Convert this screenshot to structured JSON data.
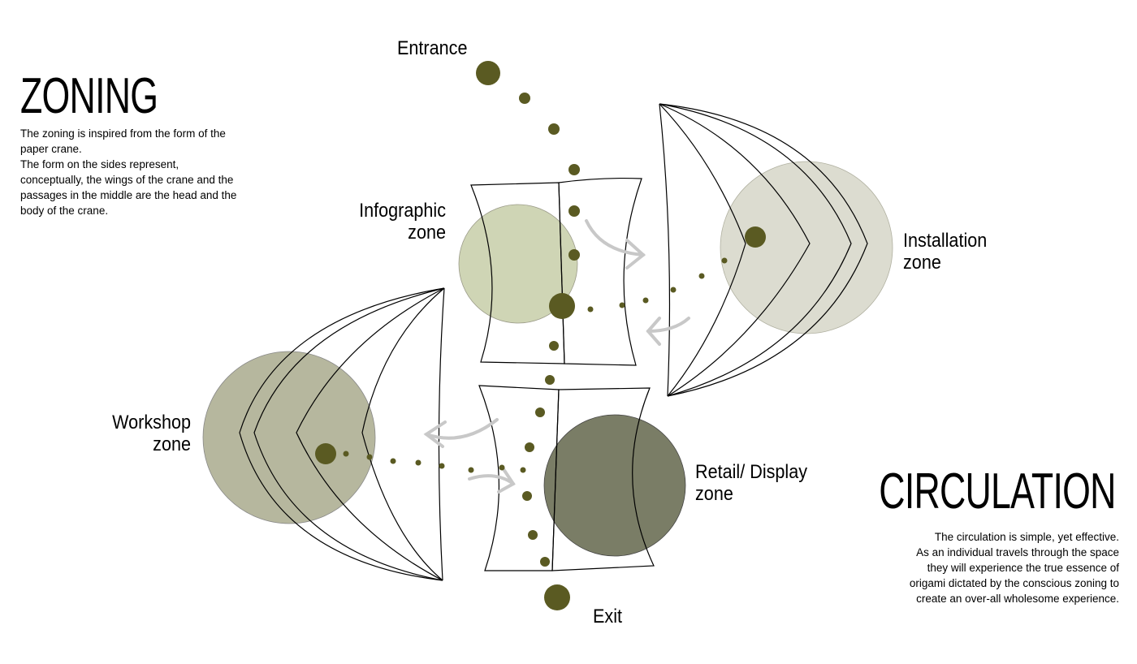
{
  "zoning": {
    "title": "ZONING",
    "lines": [
      "The zoning is inspired from the form of the",
      "paper crane.",
      "The form on the sides represent,",
      "conceptually, the wings of the crane and the",
      "passages in the middle are the head and the",
      "body of the crane."
    ]
  },
  "circulation": {
    "title": "CIRCULATION",
    "lines": [
      "The circulation is simple, yet effective.",
      "As an individual travels through the space",
      "they will experience the true essence of",
      "origami dictated by the conscious zoning to",
      "create an over-all wholesome experience."
    ]
  },
  "labels": {
    "entrance": "Entrance",
    "exit": "Exit",
    "infographic": [
      "Infographic",
      "zone"
    ],
    "installation": [
      "Installation",
      "zone"
    ],
    "workshop": [
      "Workshop",
      "zone"
    ],
    "retail": [
      "Retail/ Display",
      "zone"
    ]
  },
  "colors": {
    "dot": "#5a5a22",
    "infographic_zone": "#cfd5b5",
    "installation_zone": "#dcdcd0",
    "workshop_zone": "#b6b79e",
    "retail_zone": "#7a7d66",
    "arrow": "#c8c8c8"
  }
}
